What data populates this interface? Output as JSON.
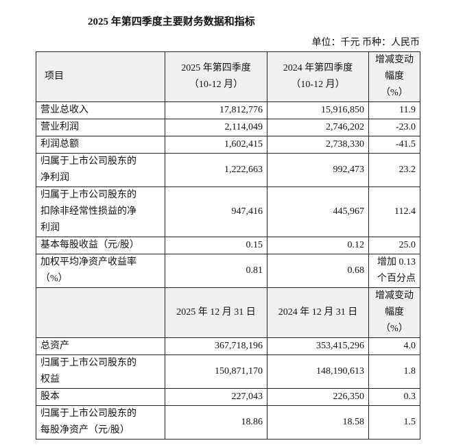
{
  "title": "2025 年第四季度主要财务数据和指标",
  "unit": "单位：千元  币种：人民币",
  "sections": [
    {
      "header": [
        [
          "项目"
        ],
        [
          "2025 年第四季度",
          "（10-12 月）"
        ],
        [
          "2024 年第四季度",
          "（10-12 月）"
        ],
        [
          "增减变动",
          "幅度",
          "（%）"
        ]
      ],
      "rows": [
        [
          [
            "营业总收入"
          ],
          [
            "17,812,776"
          ],
          [
            "15,916,850"
          ],
          [
            "11.9"
          ]
        ],
        [
          [
            "营业利润"
          ],
          [
            "2,114,049"
          ],
          [
            "2,746,202"
          ],
          [
            "-23.0"
          ]
        ],
        [
          [
            "利润总额"
          ],
          [
            "1,602,415"
          ],
          [
            "2,738,330"
          ],
          [
            "-41.5"
          ]
        ],
        [
          [
            "归属于上市公司股东的",
            "净利润"
          ],
          [
            "1,222,663"
          ],
          [
            "992,473"
          ],
          [
            "23.2"
          ]
        ],
        [
          [
            "归属于上市公司股东的",
            "扣除非经常性损益的净",
            "利润"
          ],
          [
            "947,416"
          ],
          [
            "445,967"
          ],
          [
            "112.4"
          ]
        ],
        [
          [
            "基本每股收益（元/股）"
          ],
          [
            "0.15"
          ],
          [
            "0.12"
          ],
          [
            "25.0"
          ]
        ],
        [
          [
            "加权平均净资产收益率",
            "（%）"
          ],
          [
            "0.81"
          ],
          [
            "0.68"
          ],
          [
            "增加 0.13",
            "个百分点"
          ]
        ]
      ]
    },
    {
      "header": [
        [],
        [
          "2025 年 12 月 31 日"
        ],
        [
          "2024 年 12 月 31 日"
        ],
        [
          "增减变动",
          "幅度",
          "（%）"
        ]
      ],
      "rows": [
        [
          [
            "总资产"
          ],
          [
            "367,718,196"
          ],
          [
            "353,415,296"
          ],
          [
            "4.0"
          ]
        ],
        [
          [
            "归属于上市公司股东的",
            "权益"
          ],
          [
            "150,871,170"
          ],
          [
            "148,190,613"
          ],
          [
            "1.8"
          ]
        ],
        [
          [
            "股本"
          ],
          [
            "227,043"
          ],
          [
            "226,350"
          ],
          [
            "0.3"
          ]
        ],
        [
          [
            "归属于上市公司股东的",
            "每股净资产（元/股）"
          ],
          [
            "18.86"
          ],
          [
            "18.58"
          ],
          [
            "1.5"
          ]
        ]
      ]
    }
  ]
}
